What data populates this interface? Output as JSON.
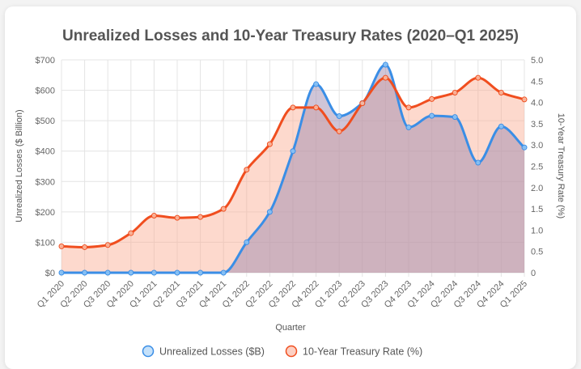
{
  "chart_data": {
    "type": "line",
    "title": "Unrealized Losses and 10-Year Treasury Rates (2020–Q1 2025)",
    "xlabel": "Quarter",
    "ylabel": "Unrealized Losses ($ Billion)",
    "y2label": "10-Year Treasury Rate (%)",
    "categories": [
      "Q1 2020",
      "Q2 2020",
      "Q3 2020",
      "Q4 2020",
      "Q1 2021",
      "Q2 2021",
      "Q3 2021",
      "Q4 2021",
      "Q1 2022",
      "Q2 2022",
      "Q3 2022",
      "Q4 2022",
      "Q1 2023",
      "Q2 2023",
      "Q3 2023",
      "Q4 2023",
      "Q1 2024",
      "Q2 2024",
      "Q3 2024",
      "Q4 2024",
      "Q1 2025"
    ],
    "ylim": [
      0,
      700
    ],
    "y_ticks": [
      0,
      100,
      200,
      300,
      400,
      500,
      600,
      700
    ],
    "y_tick_labels": [
      "$0",
      "$100",
      "$200",
      "$300",
      "$400",
      "$500",
      "$600",
      "$700"
    ],
    "y2lim": [
      0,
      5
    ],
    "y2_ticks": [
      0,
      0.5,
      1,
      1.5,
      2,
      2.5,
      3,
      3.5,
      4,
      4.5,
      5
    ],
    "y2_tick_labels": [
      "0",
      "0.5",
      "1.0",
      "1.5",
      "2.0",
      "2.5",
      "3.0",
      "3.5",
      "4.0",
      "4.5",
      "5.0"
    ],
    "grid": true,
    "legend_position": "bottom",
    "series": [
      {
        "name": "Unrealized Losses ($B)",
        "axis": "left",
        "color": "#3a8ee6",
        "fill": "rgba(160,140,175,0.50)",
        "values": [
          0,
          0,
          0,
          0,
          0,
          0,
          0,
          0,
          100,
          200,
          400,
          620,
          515,
          558,
          684,
          478,
          516,
          512,
          362,
          481,
          412
        ]
      },
      {
        "name": "10-Year Treasury Rate (%)",
        "axis": "right",
        "color": "#f04e1f",
        "fill": "rgba(250,170,145,0.45)",
        "values": [
          0.62,
          0.6,
          0.65,
          0.93,
          1.34,
          1.29,
          1.31,
          1.5,
          2.42,
          3.02,
          3.88,
          3.88,
          3.32,
          3.98,
          4.58,
          3.88,
          4.08,
          4.23,
          4.58,
          4.23,
          4.07
        ]
      }
    ]
  }
}
